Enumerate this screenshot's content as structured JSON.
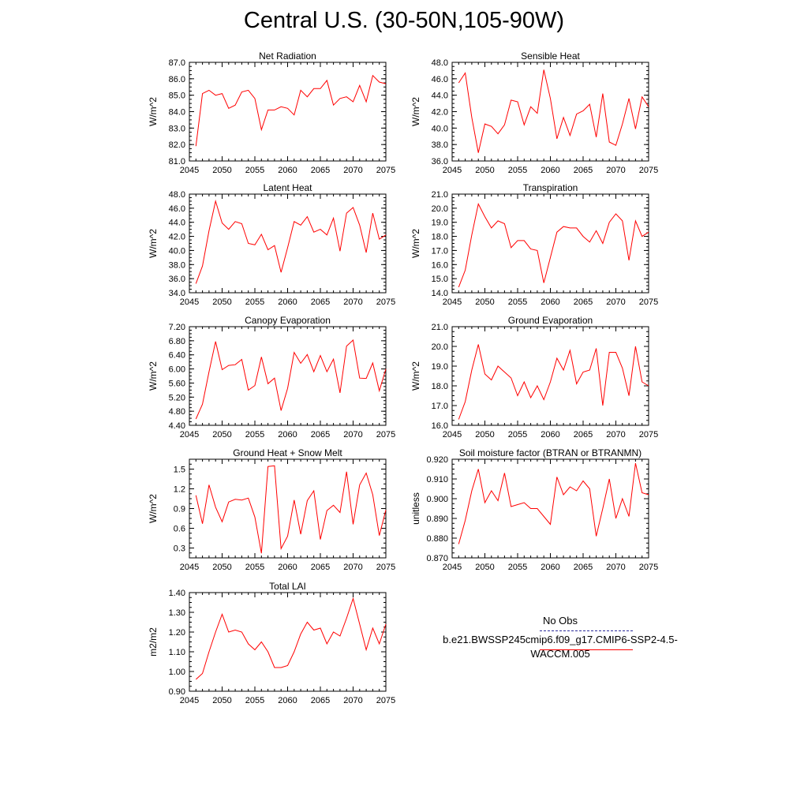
{
  "title": "Central U.S. (30-50N,105-90W)",
  "legend": {
    "obs_label": "No Obs",
    "model_label": "b.e21.BWSSP245cmip6.f09_g17.CMIP6-SSP2-4.5-WACCM.005",
    "obs_color": "#2a2a9a",
    "model_color": "#ff0000"
  },
  "chart_data": [
    {
      "type": "line",
      "title": "Net Radiation",
      "ylabel": "W/m^2",
      "xlim": [
        2045,
        2075
      ],
      "ylim": [
        81.0,
        87.0
      ],
      "yticks": [
        "81.0",
        "82.0",
        "83.0",
        "84.0",
        "85.0",
        "86.0",
        "87.0"
      ],
      "xticks": [
        "2045",
        "2050",
        "2055",
        "2060",
        "2065",
        "2070",
        "2075"
      ],
      "series": [
        {
          "values": [
            81.9,
            85.1,
            85.3,
            85.0,
            85.1,
            84.2,
            84.4,
            85.2,
            85.3,
            84.8,
            82.9,
            84.1,
            84.1,
            84.3,
            84.2,
            83.8,
            85.3,
            84.9,
            85.4,
            85.4,
            85.9,
            84.4,
            84.8,
            84.9,
            84.6,
            85.6,
            84.6,
            86.2,
            85.8,
            85.7
          ],
          "color": "#ff0000"
        }
      ],
      "x": [
        2046,
        2047,
        2048,
        2049,
        2050,
        2051,
        2052,
        2053,
        2054,
        2055,
        2056,
        2057,
        2058,
        2059,
        2060,
        2061,
        2062,
        2063,
        2064,
        2065,
        2066,
        2067,
        2068,
        2069,
        2070,
        2071,
        2072,
        2073,
        2074,
        2075
      ]
    },
    {
      "type": "line",
      "title": "Sensible Heat",
      "ylabel": "W/m^2",
      "xlim": [
        2045,
        2075
      ],
      "ylim": [
        36.0,
        48.0
      ],
      "yticks": [
        "36.0",
        "38.0",
        "40.0",
        "42.0",
        "44.0",
        "46.0",
        "48.0"
      ],
      "xticks": [
        "2045",
        "2050",
        "2055",
        "2060",
        "2065",
        "2070",
        "2075"
      ],
      "series": [
        {
          "values": [
            45.5,
            46.7,
            41.3,
            37.0,
            40.5,
            40.2,
            39.3,
            40.4,
            43.4,
            43.2,
            40.4,
            42.6,
            41.8,
            47.1,
            43.6,
            38.7,
            41.3,
            39.1,
            41.7,
            42.1,
            42.9,
            38.9,
            44.2,
            38.3,
            37.9,
            40.5,
            43.6,
            39.9,
            43.8,
            42.6
          ],
          "color": "#ff0000"
        }
      ],
      "x": [
        2046,
        2047,
        2048,
        2049,
        2050,
        2051,
        2052,
        2053,
        2054,
        2055,
        2056,
        2057,
        2058,
        2059,
        2060,
        2061,
        2062,
        2063,
        2064,
        2065,
        2066,
        2067,
        2068,
        2069,
        2070,
        2071,
        2072,
        2073,
        2074,
        2075
      ]
    },
    {
      "type": "line",
      "title": "Latent Heat",
      "ylabel": "W/m^2",
      "xlim": [
        2045,
        2075
      ],
      "ylim": [
        34.0,
        48.0
      ],
      "yticks": [
        "34.0",
        "36.0",
        "38.0",
        "40.0",
        "42.0",
        "44.0",
        "46.0",
        "48.0"
      ],
      "xticks": [
        "2045",
        "2050",
        "2055",
        "2060",
        "2065",
        "2070",
        "2075"
      ],
      "series": [
        {
          "values": [
            35.3,
            37.8,
            42.8,
            47.0,
            43.9,
            43.0,
            44.1,
            43.8,
            41.0,
            40.8,
            42.3,
            40.1,
            40.7,
            36.9,
            40.4,
            44.1,
            43.6,
            44.8,
            42.6,
            43.0,
            42.2,
            44.6,
            39.9,
            45.3,
            46.1,
            43.6,
            39.7,
            45.3,
            41.6,
            42.2
          ],
          "color": "#ff0000"
        }
      ],
      "x": [
        2046,
        2047,
        2048,
        2049,
        2050,
        2051,
        2052,
        2053,
        2054,
        2055,
        2056,
        2057,
        2058,
        2059,
        2060,
        2061,
        2062,
        2063,
        2064,
        2065,
        2066,
        2067,
        2068,
        2069,
        2070,
        2071,
        2072,
        2073,
        2074,
        2075
      ]
    },
    {
      "type": "line",
      "title": "Transpiration",
      "ylabel": "W/m^2",
      "xlim": [
        2045,
        2075
      ],
      "ylim": [
        14.0,
        21.0
      ],
      "yticks": [
        "14.0",
        "15.0",
        "16.0",
        "17.0",
        "18.0",
        "19.0",
        "20.0",
        "21.0"
      ],
      "xticks": [
        "2045",
        "2050",
        "2055",
        "2060",
        "2065",
        "2070",
        "2075"
      ],
      "series": [
        {
          "values": [
            14.4,
            15.6,
            18.1,
            20.3,
            19.4,
            18.6,
            19.1,
            18.9,
            17.2,
            17.7,
            17.7,
            17.1,
            17.0,
            14.7,
            16.5,
            18.3,
            18.7,
            18.6,
            18.6,
            18.0,
            17.6,
            18.4,
            17.5,
            19.0,
            19.6,
            19.1,
            16.3,
            19.1,
            18.0,
            18.3
          ],
          "color": "#ff0000"
        }
      ],
      "x": [
        2046,
        2047,
        2048,
        2049,
        2050,
        2051,
        2052,
        2053,
        2054,
        2055,
        2056,
        2057,
        2058,
        2059,
        2060,
        2061,
        2062,
        2063,
        2064,
        2065,
        2066,
        2067,
        2068,
        2069,
        2070,
        2071,
        2072,
        2073,
        2074,
        2075
      ]
    },
    {
      "type": "line",
      "title": "Canopy Evaporation",
      "ylabel": "W/m^2",
      "xlim": [
        2045,
        2075
      ],
      "ylim": [
        4.4,
        7.2
      ],
      "yticks": [
        "4.40",
        "4.80",
        "5.20",
        "5.60",
        "6.00",
        "6.40",
        "6.80",
        "7.20"
      ],
      "xticks": [
        "2045",
        "2050",
        "2055",
        "2060",
        "2065",
        "2070",
        "2075"
      ],
      "series": [
        {
          "values": [
            4.58,
            5.0,
            5.92,
            6.78,
            5.98,
            6.1,
            6.12,
            6.27,
            5.4,
            5.53,
            6.34,
            5.58,
            5.74,
            4.82,
            5.45,
            6.47,
            6.16,
            6.41,
            5.92,
            6.38,
            5.92,
            6.28,
            5.32,
            6.65,
            6.82,
            5.74,
            5.73,
            6.17,
            5.38,
            6.0
          ],
          "color": "#ff0000"
        }
      ],
      "x": [
        2046,
        2047,
        2048,
        2049,
        2050,
        2051,
        2052,
        2053,
        2054,
        2055,
        2056,
        2057,
        2058,
        2059,
        2060,
        2061,
        2062,
        2063,
        2064,
        2065,
        2066,
        2067,
        2068,
        2069,
        2070,
        2071,
        2072,
        2073,
        2074,
        2075
      ]
    },
    {
      "type": "line",
      "title": "Ground Evaporation",
      "ylabel": "W/m^2",
      "xlim": [
        2045,
        2075
      ],
      "ylim": [
        16.0,
        21.0
      ],
      "yticks": [
        "16.0",
        "17.0",
        "18.0",
        "19.0",
        "20.0",
        "21.0"
      ],
      "xticks": [
        "2045",
        "2050",
        "2055",
        "2060",
        "2065",
        "2070",
        "2075"
      ],
      "series": [
        {
          "values": [
            16.3,
            17.2,
            18.8,
            20.1,
            18.6,
            18.3,
            19.0,
            18.7,
            18.4,
            17.5,
            18.2,
            17.4,
            18.0,
            17.3,
            18.2,
            19.4,
            18.8,
            19.8,
            18.1,
            18.7,
            18.8,
            19.9,
            17.0,
            19.7,
            19.7,
            18.9,
            17.5,
            20.0,
            18.2,
            18.0
          ],
          "color": "#ff0000"
        }
      ],
      "x": [
        2046,
        2047,
        2048,
        2049,
        2050,
        2051,
        2052,
        2053,
        2054,
        2055,
        2056,
        2057,
        2058,
        2059,
        2060,
        2061,
        2062,
        2063,
        2064,
        2065,
        2066,
        2067,
        2068,
        2069,
        2070,
        2071,
        2072,
        2073,
        2074,
        2075
      ]
    },
    {
      "type": "line",
      "title": "Ground Heat + Snow Melt",
      "ylabel": "W/m^2",
      "xlim": [
        2045,
        2075
      ],
      "ylim": [
        0.15,
        1.65
      ],
      "yticks": [
        "0.3",
        "0.6",
        "0.9",
        "1.2",
        "1.5"
      ],
      "ytick_values": [
        0.3,
        0.6,
        0.9,
        1.2,
        1.5
      ],
      "xticks": [
        "2045",
        "2050",
        "2055",
        "2060",
        "2065",
        "2070",
        "2075"
      ],
      "series": [
        {
          "values": [
            1.1,
            0.67,
            1.26,
            0.92,
            0.7,
            1.0,
            1.04,
            1.03,
            1.06,
            0.77,
            0.22,
            1.54,
            1.55,
            0.29,
            0.48,
            1.03,
            0.51,
            1.02,
            1.17,
            0.43,
            0.87,
            0.95,
            0.84,
            1.46,
            0.66,
            1.26,
            1.44,
            1.11,
            0.49,
            0.88
          ],
          "color": "#ff0000"
        }
      ],
      "x": [
        2046,
        2047,
        2048,
        2049,
        2050,
        2051,
        2052,
        2053,
        2054,
        2055,
        2056,
        2057,
        2058,
        2059,
        2060,
        2061,
        2062,
        2063,
        2064,
        2065,
        2066,
        2067,
        2068,
        2069,
        2070,
        2071,
        2072,
        2073,
        2074,
        2075
      ]
    },
    {
      "type": "line",
      "title": "Soil moisture factor (BTRAN or BTRANMN)",
      "ylabel": "unitless",
      "xlim": [
        2045,
        2075
      ],
      "ylim": [
        0.87,
        0.92
      ],
      "yticks": [
        "0.870",
        "0.880",
        "0.890",
        "0.900",
        "0.910",
        "0.920"
      ],
      "xticks": [
        "2045",
        "2050",
        "2055",
        "2060",
        "2065",
        "2070",
        "2075"
      ],
      "series": [
        {
          "values": [
            0.877,
            0.889,
            0.904,
            0.915,
            0.898,
            0.904,
            0.899,
            0.913,
            0.896,
            0.897,
            0.898,
            0.895,
            0.895,
            0.891,
            0.887,
            0.911,
            0.902,
            0.906,
            0.904,
            0.909,
            0.905,
            0.881,
            0.895,
            0.91,
            0.89,
            0.9,
            0.891,
            0.918,
            0.903,
            0.902
          ],
          "color": "#ff0000"
        }
      ],
      "x": [
        2046,
        2047,
        2048,
        2049,
        2050,
        2051,
        2052,
        2053,
        2054,
        2055,
        2056,
        2057,
        2058,
        2059,
        2060,
        2061,
        2062,
        2063,
        2064,
        2065,
        2066,
        2067,
        2068,
        2069,
        2070,
        2071,
        2072,
        2073,
        2074,
        2075
      ]
    },
    {
      "type": "line",
      "title": "Total LAI",
      "ylabel": "m2/m2",
      "xlim": [
        2045,
        2075
      ],
      "ylim": [
        0.9,
        1.4
      ],
      "yticks": [
        "0.90",
        "1.00",
        "1.10",
        "1.20",
        "1.30",
        "1.40"
      ],
      "xticks": [
        "2045",
        "2050",
        "2055",
        "2060",
        "2065",
        "2070",
        "2075"
      ],
      "series": [
        {
          "values": [
            0.96,
            0.99,
            1.1,
            1.2,
            1.29,
            1.2,
            1.21,
            1.2,
            1.14,
            1.11,
            1.15,
            1.1,
            1.02,
            1.02,
            1.03,
            1.1,
            1.19,
            1.25,
            1.21,
            1.22,
            1.14,
            1.2,
            1.18,
            1.27,
            1.37,
            1.24,
            1.11,
            1.22,
            1.14,
            1.24
          ],
          "color": "#ff0000"
        }
      ],
      "x": [
        2046,
        2047,
        2048,
        2049,
        2050,
        2051,
        2052,
        2053,
        2054,
        2055,
        2056,
        2057,
        2058,
        2059,
        2060,
        2061,
        2062,
        2063,
        2064,
        2065,
        2066,
        2067,
        2068,
        2069,
        2070,
        2071,
        2072,
        2073,
        2074,
        2075
      ]
    }
  ]
}
